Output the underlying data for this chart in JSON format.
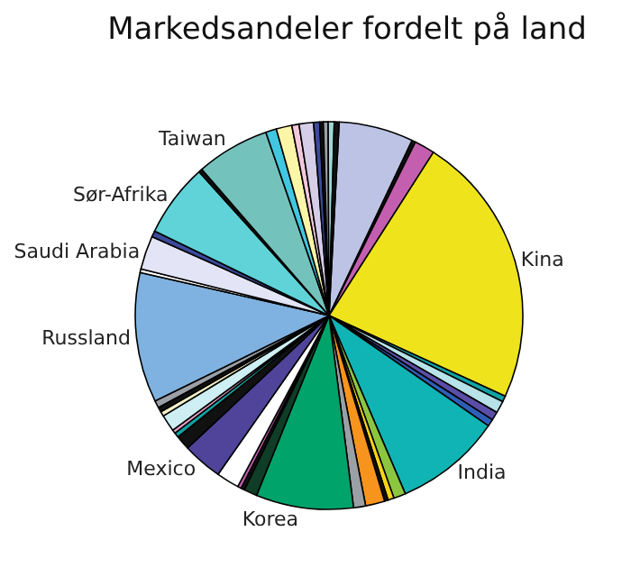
{
  "chart_data": {
    "type": "pie",
    "title": "Markedsandeler fordelt på land",
    "categories": [
      null,
      null,
      null,
      "Kina",
      null,
      null,
      null,
      null,
      "India",
      null,
      null,
      null,
      null,
      null,
      "Korea",
      null,
      null,
      null,
      null,
      "Mexico",
      null,
      null,
      null,
      null,
      null,
      null,
      null,
      "Russland",
      null,
      "Saudi Arabia",
      null,
      "Sør-Afrika",
      null,
      "Taiwan",
      null,
      null,
      null,
      null,
      null,
      null,
      null,
      null,
      null
    ],
    "values": [
      6.2,
      0.3,
      1.7,
      22.7,
      0.5,
      1.0,
      0.7,
      0.6,
      8.9,
      1.0,
      0.5,
      0.3,
      1.6,
      1.0,
      8.1,
      1.1,
      0.3,
      0.3,
      1.9,
      3.3,
      1.2,
      0.4,
      0.3,
      1.4,
      0.4,
      0.4,
      0.6,
      10.8,
      0.3,
      2.8,
      0.5,
      6.1,
      0.3,
      6.1,
      0.9,
      1.3,
      0.6,
      1.2,
      0.5,
      0.3,
      0.4,
      0.5,
      0.4
    ],
    "colors": [
      "#bcc3e4",
      "#111111",
      "#c45fb0",
      "#efe41c",
      "#11a3a3",
      "#b6e2e8",
      "#5b4ea8",
      "#2e5fb8",
      "#10b4b4",
      "#8cc63f",
      "#f7d417",
      "#111111",
      "#f7941d",
      "#9aa0a6",
      "#00a36a",
      "#0f3d26",
      "#111111",
      "#c45fb0",
      "#ffffff",
      "#4f449a",
      "#111111",
      "#11a3a3",
      "#e8a0c8",
      "#cdeef2",
      "#f4f0c8",
      "#111111",
      "#9aa0a6",
      "#7fb2e0",
      "#ffffff",
      "#e3e4f6",
      "#3b4a9a",
      "#60d3d8",
      "#111111",
      "#74c2bc",
      "#41c8e0",
      "#fbf5a8",
      "#f4c8dc",
      "#d6cde8",
      "#3b4a9a",
      "#111111",
      "#9aa0a6",
      "#9fd8d8",
      "#111111"
    ]
  }
}
